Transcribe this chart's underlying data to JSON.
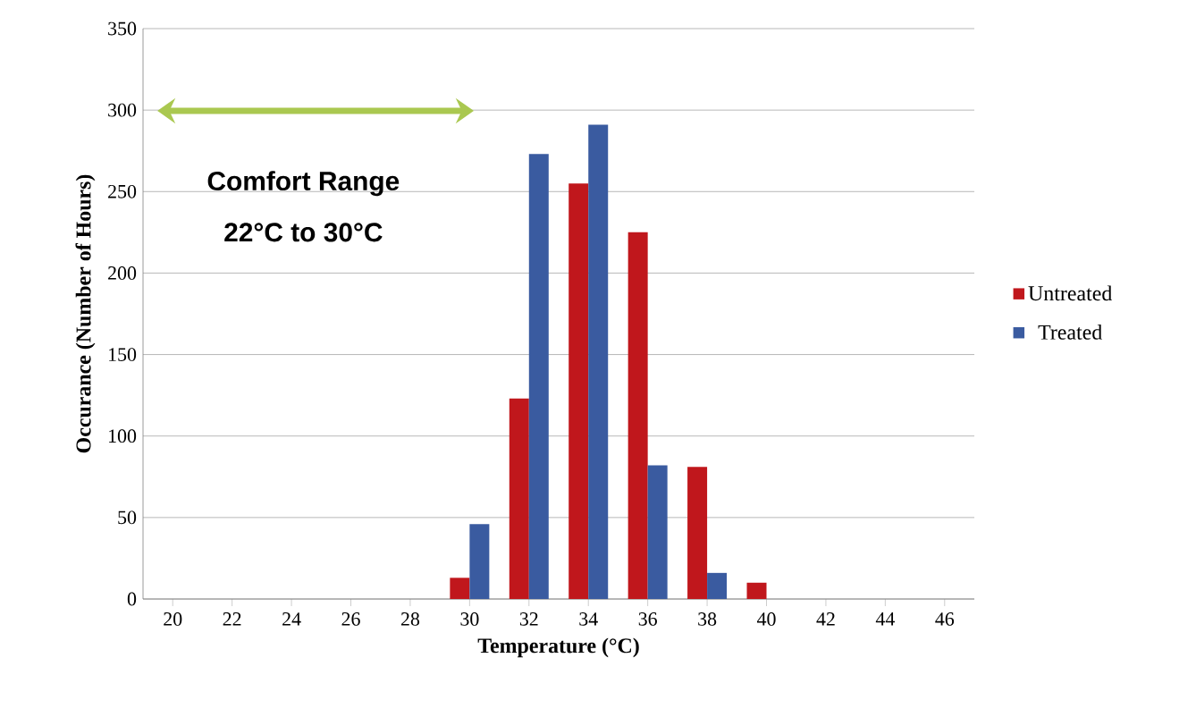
{
  "chart_data": {
    "type": "bar",
    "xlabel": "Temperature (°C)",
    "ylabel": "Occurance (Number of Hours)",
    "categories": [
      "20",
      "22",
      "24",
      "26",
      "28",
      "30",
      "32",
      "34",
      "36",
      "38",
      "40",
      "42",
      "44",
      "46"
    ],
    "series": [
      {
        "name": "Untreated",
        "color": "#c0171c",
        "values": [
          0,
          0,
          0,
          0,
          0,
          13,
          123,
          255,
          225,
          81,
          10,
          0,
          0,
          0
        ]
      },
      {
        "name": "Treated",
        "color": "#3a5ba0",
        "values": [
          0,
          0,
          0,
          0,
          0,
          46,
          273,
          291,
          82,
          16,
          0,
          0,
          0,
          0
        ]
      }
    ],
    "ylim": [
      0,
      350
    ],
    "yticks": [
      0,
      50,
      100,
      150,
      200,
      250,
      300,
      350
    ],
    "grid": "y",
    "legend": "right",
    "annotations": [
      "Comfort Range",
      "22°C to 30°C"
    ]
  }
}
